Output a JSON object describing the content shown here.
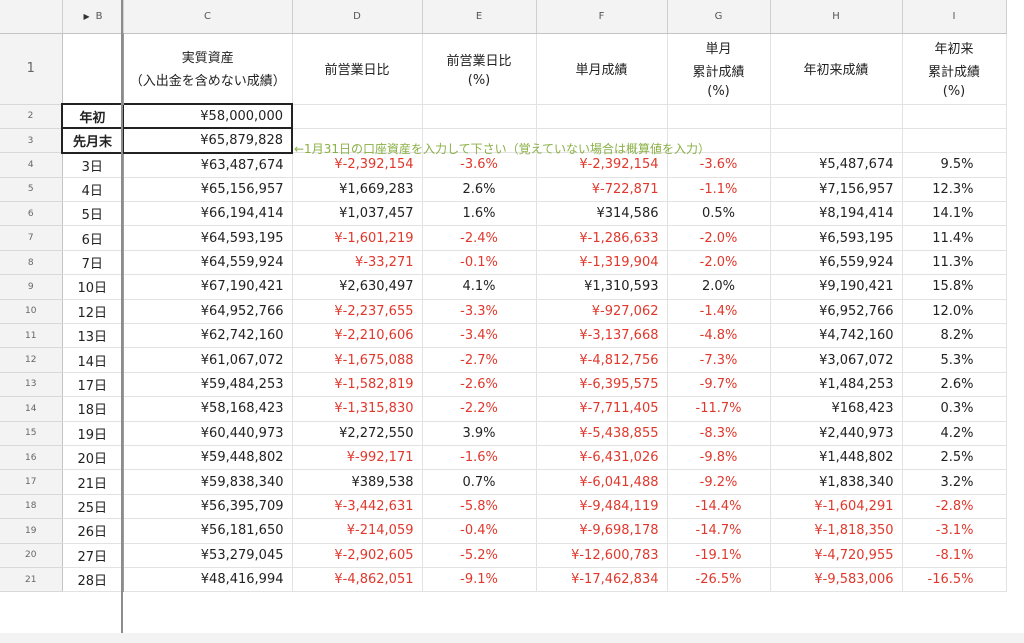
{
  "columns": {
    "b": "B",
    "c": "C",
    "d": "D",
    "e": "E",
    "f": "F",
    "g": "G",
    "h": "H",
    "i": "I"
  },
  "headers": {
    "row": "1",
    "c_line1": "実質資産",
    "c_line2": "（入出金を含めない成績）",
    "d": "前営業日比",
    "e_line1": "前営業日比",
    "e_line2": "(%)",
    "f": "単月成績",
    "g_line1": "単月",
    "g_line2": "累計成績",
    "g_line3": "(%)",
    "h": "年初来成績",
    "i_line1": "年初来",
    "i_line2": "累計成績",
    "i_line3": "(%)"
  },
  "setup_rows": [
    {
      "row": "2",
      "label": "年初",
      "value": "¥58,000,000"
    },
    {
      "row": "3",
      "label": "先月末",
      "value": "¥65,879,828"
    }
  ],
  "note": "←1月31日の口座資産を入力して下さい（覚えていない場合は概算値を入力）",
  "rows": [
    {
      "row": "4",
      "day": "3日",
      "asset": "¥63,487,674",
      "diff": "¥-2,392,154",
      "diff_pct": "-3.6%",
      "month": "¥-2,392,154",
      "month_pct": "-3.6%",
      "ytd": "¥5,487,674",
      "ytd_pct": "9.5%"
    },
    {
      "row": "5",
      "day": "4日",
      "asset": "¥65,156,957",
      "diff": "¥1,669,283",
      "diff_pct": "2.6%",
      "month": "¥-722,871",
      "month_pct": "-1.1%",
      "ytd": "¥7,156,957",
      "ytd_pct": "12.3%"
    },
    {
      "row": "6",
      "day": "5日",
      "asset": "¥66,194,414",
      "diff": "¥1,037,457",
      "diff_pct": "1.6%",
      "month": "¥314,586",
      "month_pct": "0.5%",
      "ytd": "¥8,194,414",
      "ytd_pct": "14.1%"
    },
    {
      "row": "7",
      "day": "6日",
      "asset": "¥64,593,195",
      "diff": "¥-1,601,219",
      "diff_pct": "-2.4%",
      "month": "¥-1,286,633",
      "month_pct": "-2.0%",
      "ytd": "¥6,593,195",
      "ytd_pct": "11.4%"
    },
    {
      "row": "8",
      "day": "7日",
      "asset": "¥64,559,924",
      "diff": "¥-33,271",
      "diff_pct": "-0.1%",
      "month": "¥-1,319,904",
      "month_pct": "-2.0%",
      "ytd": "¥6,559,924",
      "ytd_pct": "11.3%"
    },
    {
      "row": "9",
      "day": "10日",
      "asset": "¥67,190,421",
      "diff": "¥2,630,497",
      "diff_pct": "4.1%",
      "month": "¥1,310,593",
      "month_pct": "2.0%",
      "ytd": "¥9,190,421",
      "ytd_pct": "15.8%"
    },
    {
      "row": "10",
      "day": "12日",
      "asset": "¥64,952,766",
      "diff": "¥-2,237,655",
      "diff_pct": "-3.3%",
      "month": "¥-927,062",
      "month_pct": "-1.4%",
      "ytd": "¥6,952,766",
      "ytd_pct": "12.0%"
    },
    {
      "row": "11",
      "day": "13日",
      "asset": "¥62,742,160",
      "diff": "¥-2,210,606",
      "diff_pct": "-3.4%",
      "month": "¥-3,137,668",
      "month_pct": "-4.8%",
      "ytd": "¥4,742,160",
      "ytd_pct": "8.2%"
    },
    {
      "row": "12",
      "day": "14日",
      "asset": "¥61,067,072",
      "diff": "¥-1,675,088",
      "diff_pct": "-2.7%",
      "month": "¥-4,812,756",
      "month_pct": "-7.3%",
      "ytd": "¥3,067,072",
      "ytd_pct": "5.3%"
    },
    {
      "row": "13",
      "day": "17日",
      "asset": "¥59,484,253",
      "diff": "¥-1,582,819",
      "diff_pct": "-2.6%",
      "month": "¥-6,395,575",
      "month_pct": "-9.7%",
      "ytd": "¥1,484,253",
      "ytd_pct": "2.6%"
    },
    {
      "row": "14",
      "day": "18日",
      "asset": "¥58,168,423",
      "diff": "¥-1,315,830",
      "diff_pct": "-2.2%",
      "month": "¥-7,711,405",
      "month_pct": "-11.7%",
      "ytd": "¥168,423",
      "ytd_pct": "0.3%"
    },
    {
      "row": "15",
      "day": "19日",
      "asset": "¥60,440,973",
      "diff": "¥2,272,550",
      "diff_pct": "3.9%",
      "month": "¥-5,438,855",
      "month_pct": "-8.3%",
      "ytd": "¥2,440,973",
      "ytd_pct": "4.2%"
    },
    {
      "row": "16",
      "day": "20日",
      "asset": "¥59,448,802",
      "diff": "¥-992,171",
      "diff_pct": "-1.6%",
      "month": "¥-6,431,026",
      "month_pct": "-9.8%",
      "ytd": "¥1,448,802",
      "ytd_pct": "2.5%"
    },
    {
      "row": "17",
      "day": "21日",
      "asset": "¥59,838,340",
      "diff": "¥389,538",
      "diff_pct": "0.7%",
      "month": "¥-6,041,488",
      "month_pct": "-9.2%",
      "ytd": "¥1,838,340",
      "ytd_pct": "3.2%"
    },
    {
      "row": "18",
      "day": "25日",
      "asset": "¥56,395,709",
      "diff": "¥-3,442,631",
      "diff_pct": "-5.8%",
      "month": "¥-9,484,119",
      "month_pct": "-14.4%",
      "ytd": "¥-1,604,291",
      "ytd_pct": "-2.8%"
    },
    {
      "row": "19",
      "day": "26日",
      "asset": "¥56,181,650",
      "diff": "¥-214,059",
      "diff_pct": "-0.4%",
      "month": "¥-9,698,178",
      "month_pct": "-14.7%",
      "ytd": "¥-1,818,350",
      "ytd_pct": "-3.1%"
    },
    {
      "row": "20",
      "day": "27日",
      "asset": "¥53,279,045",
      "diff": "¥-2,902,605",
      "diff_pct": "-5.2%",
      "month": "¥-12,600,783",
      "month_pct": "-19.1%",
      "ytd": "¥-4,720,955",
      "ytd_pct": "-8.1%"
    },
    {
      "row": "21",
      "day": "28日",
      "asset": "¥48,416,994",
      "diff": "¥-4,862,051",
      "diff_pct": "-9.1%",
      "month": "¥-17,462,834",
      "month_pct": "-26.5%",
      "ytd": "¥-9,583,006",
      "ytd_pct": "-16.5%"
    }
  ],
  "colors": {
    "negative": "#e0382c",
    "note": "#8ab045",
    "header_bg": "#f3f3f3"
  }
}
